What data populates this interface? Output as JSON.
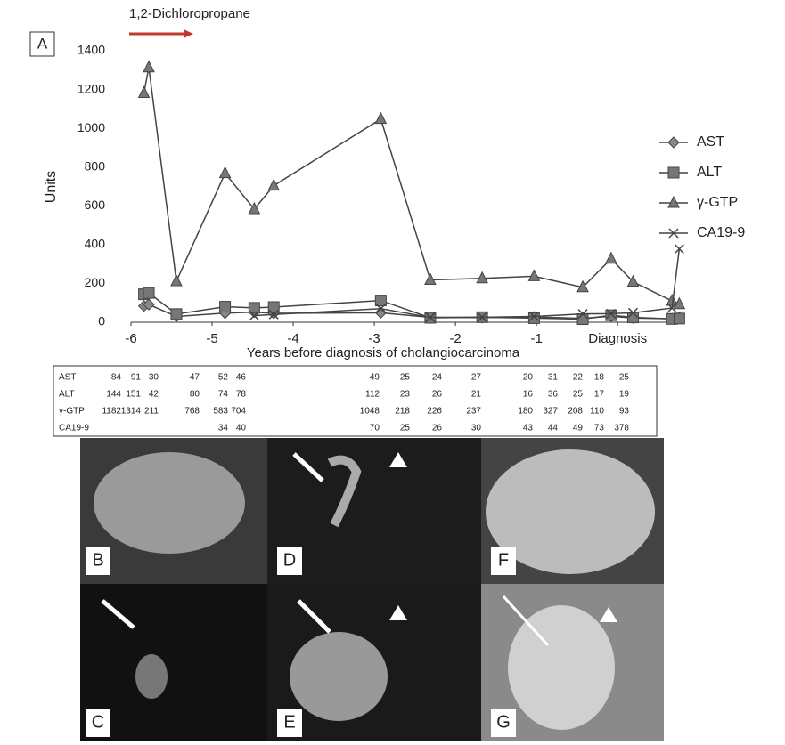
{
  "panel_label": "A",
  "image_panels": [
    "B",
    "D",
    "F",
    "C",
    "E",
    "G"
  ],
  "chart_data": {
    "type": "line",
    "title": "1,2-Dichloropropane",
    "y_label": "Units",
    "x_label": "Years before diagnosis of cholangiocarcinoma",
    "x": [
      -5.84,
      -5.78,
      -5.44,
      -4.84,
      -4.48,
      -4.24,
      -2.92,
      -2.31,
      -1.67,
      -1.03,
      -0.43,
      -0.08,
      0.19,
      0.67,
      0.76
    ],
    "xlim": [
      -6,
      0.8
    ],
    "xticks": [
      -6,
      -5,
      -4,
      -3,
      -2,
      -1,
      {
        "value": 0,
        "label": "Diagnosis"
      }
    ],
    "ylim": [
      0,
      1400
    ],
    "yticks": [
      0,
      200,
      400,
      600,
      800,
      1000,
      1200,
      1400
    ],
    "grid": false,
    "legend": "right",
    "series": [
      {
        "name": "AST",
        "marker": "diamond",
        "color": "#444444",
        "values": [
          84,
          91,
          30,
          47,
          52,
          46,
          49,
          25,
          24,
          27,
          20,
          31,
          22,
          18,
          25
        ]
      },
      {
        "name": "ALT",
        "marker": "square",
        "color": "#444444",
        "values": [
          144,
          151,
          42,
          80,
          74,
          78,
          112,
          23,
          26,
          21,
          16,
          36,
          25,
          17,
          19
        ]
      },
      {
        "name": "γ-GTP",
        "marker": "triangle",
        "color": "#444444",
        "values": [
          1182,
          1314,
          211,
          768,
          583,
          704,
          1048,
          218,
          226,
          237,
          180,
          327,
          208,
          110,
          93
        ]
      },
      {
        "name": "CA19-9",
        "marker": "cross",
        "color": "#444444",
        "values": [
          null,
          null,
          null,
          null,
          34,
          40,
          70,
          25,
          26,
          30,
          43,
          44,
          49,
          73,
          378
        ]
      }
    ]
  }
}
